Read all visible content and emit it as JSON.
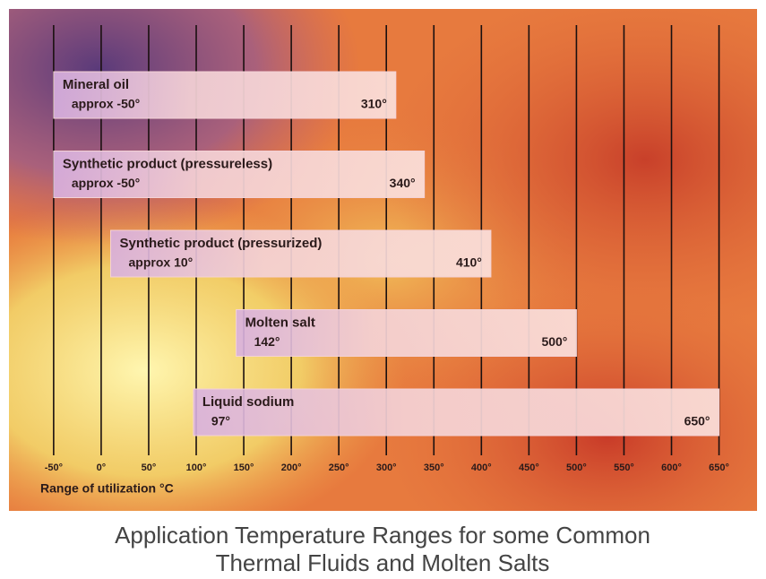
{
  "chart_data": {
    "type": "range_bar",
    "title": "Application Temperature Ranges for some Common Thermal Fluids and Molten Salts",
    "x_label": "Range of utilization °C",
    "xlim": [
      -97,
      690
    ],
    "xticks": [
      {
        "value": -50,
        "label": "-50°"
      },
      {
        "value": 0,
        "label": "0°"
      },
      {
        "value": 50,
        "label": "50°"
      },
      {
        "value": 100,
        "label": "100°"
      },
      {
        "value": 150,
        "label": "150°"
      },
      {
        "value": 200,
        "label": "200°"
      },
      {
        "value": 250,
        "label": "250°"
      },
      {
        "value": 300,
        "label": "300°"
      },
      {
        "value": 350,
        "label": "350°"
      },
      {
        "value": 400,
        "label": "400°"
      },
      {
        "value": 450,
        "label": "450°"
      },
      {
        "value": 500,
        "label": "500°"
      },
      {
        "value": 550,
        "label": "550°"
      },
      {
        "value": 600,
        "label": "600°"
      },
      {
        "value": 650,
        "label": "650°"
      }
    ],
    "grid": true,
    "color": "#f4d2d6",
    "ranges": [
      {
        "label": "Mineral oil",
        "low": -50,
        "high": 310,
        "low_label": "approx -50°",
        "high_label": "310°"
      },
      {
        "label": "Synthetic product (pressureless)",
        "low": -50,
        "high": 340,
        "low_label": "approx -50°",
        "high_label": "340°"
      },
      {
        "label": "Synthetic product (pressurized)",
        "low": 10,
        "high": 410,
        "low_label": "approx 10°",
        "high_label": "410°"
      },
      {
        "label": "Molten salt",
        "low": 142,
        "high": 500,
        "low_label": "142°",
        "high_label": "500°"
      },
      {
        "label": "Liquid sodium",
        "low": 97,
        "high": 650,
        "low_label": "97°",
        "high_label": "650°"
      }
    ]
  }
}
